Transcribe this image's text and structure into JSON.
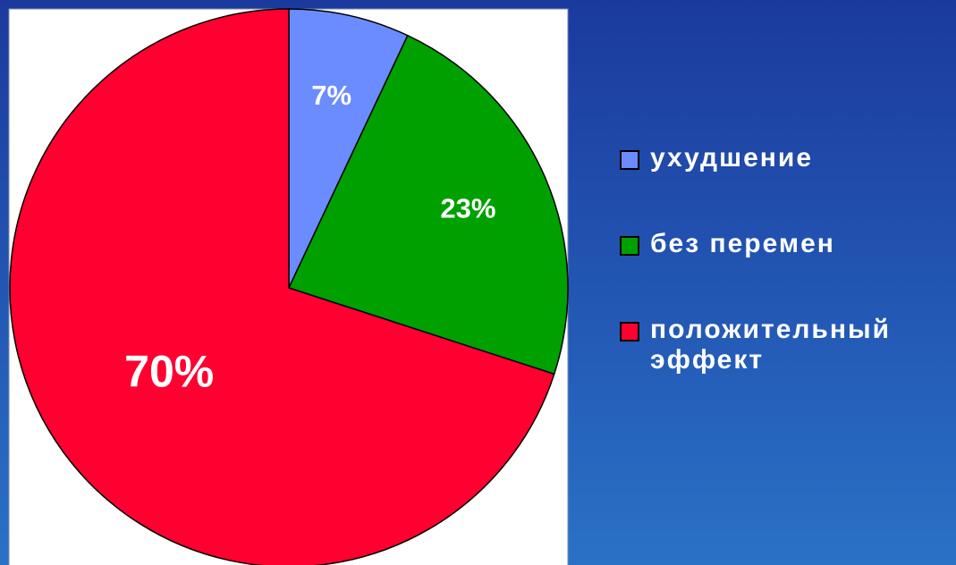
{
  "chart_data": {
    "type": "pie",
    "categories": [
      "ухудшение",
      "без перемен",
      "положительный эффект"
    ],
    "values": [
      7,
      23,
      70
    ],
    "value_labels": [
      "7%",
      "23%",
      "70%"
    ],
    "colors": [
      "#6b8cff",
      "#00a000",
      "#ff0030"
    ],
    "legend": "right"
  }
}
